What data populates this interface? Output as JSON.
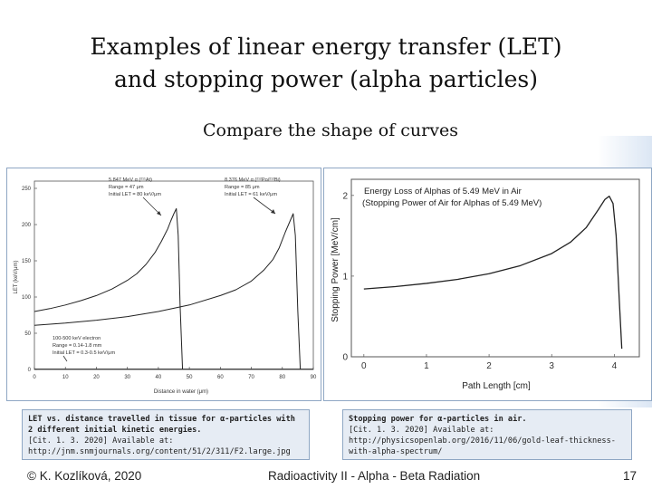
{
  "slide": {
    "title_line1": "Examples of linear energy transfer (LET)",
    "title_line2": "and stopping power (alpha particles)",
    "subtitle": "Compare the shape of curves",
    "footer_left": "© K. Kozlíková, 2020",
    "footer_center": "Radioactivity II - Alpha - Beta Radiation",
    "page_number": "17",
    "accent_color": "#8fa7c4",
    "caption_bg": "#e6ecf4"
  },
  "caption_left": {
    "line1": "LET vs. distance travelled in tissue for α-particles with",
    "line2": "2 different initial kinetic energies.",
    "line3": "[Cit. 1. 3. 2020] Available at:",
    "line4": "http://jnm.snmjournals.org/content/51/2/311/F2.large.jpg"
  },
  "caption_right": {
    "line1": "Stopping power for α-particles in air.",
    "line2": "[Cit. 1. 3. 2020] Available at:",
    "line3": "http://physicsopenlab.org/2016/11/06/gold-leaf-thickness-",
    "line4": "with-alpha-spectrum/"
  },
  "chart_data": [
    {
      "type": "line",
      "title": "",
      "xlabel": "Distance in water (μm)",
      "ylabel": "LET (keV/μm)",
      "xlim": [
        0,
        90
      ],
      "ylim": [
        0,
        260
      ],
      "x_ticks": [
        "0",
        "10",
        "20",
        "30",
        "40",
        "50",
        "60",
        "70",
        "80",
        "90"
      ],
      "y_ticks": [
        "0",
        "50",
        "100",
        "150",
        "200",
        "250"
      ],
      "grid": false,
      "annotations": [
        {
          "lines": [
            "5.847 MeV α (²¹¹At)",
            "Range = 47 μm",
            "Initial LET = 80 keV/μm"
          ]
        },
        {
          "lines": [
            "8.376 MeV α (²¹²Po/²¹²Bi)",
            "Range = 85 μm",
            "Initial LET = 61 keV/μm"
          ]
        },
        {
          "lines": [
            "100-500 keV electron",
            "Range = 0.14-1.8 mm",
            "Initial LET = 0.3-0.5 keV/μm"
          ]
        }
      ],
      "series": [
        {
          "color": "#222222",
          "x": [
            0,
            5,
            10,
            15,
            20,
            25,
            30,
            33,
            36,
            39,
            41,
            43,
            44,
            45,
            45.8,
            46.4,
            47,
            47.8
          ],
          "y": [
            80,
            84,
            89,
            95,
            102,
            111,
            123,
            132,
            145,
            162,
            177,
            194,
            205,
            215,
            222,
            185,
            90,
            0
          ]
        },
        {
          "color": "#222222",
          "x": [
            0,
            10,
            20,
            30,
            40,
            50,
            60,
            65,
            70,
            74,
            77,
            79,
            81,
            82.5,
            83.5,
            84.2,
            85,
            85.8
          ],
          "y": [
            61,
            64,
            68,
            73,
            80,
            89,
            102,
            110,
            122,
            137,
            152,
            168,
            190,
            205,
            215,
            185,
            80,
            0
          ]
        },
        {
          "color": "#222222",
          "x": [
            0,
            90
          ],
          "y": [
            0.4,
            0.4
          ]
        }
      ]
    },
    {
      "type": "line",
      "title": "Energy Loss of Alphas of 5.49 MeV in Air",
      "subtitle": "(Stopping Power of Air for Alphas of 5.49 MeV)",
      "xlabel": "Path Length [cm]",
      "ylabel": "Stopping Power [MeV/cm]",
      "xlim": [
        -0.2,
        4.4
      ],
      "ylim": [
        0,
        2.2
      ],
      "x_ticks": [
        "0",
        "1",
        "2",
        "3",
        "4"
      ],
      "y_ticks": [
        "0",
        "1",
        "2"
      ],
      "grid": false,
      "series": [
        {
          "color": "#222222",
          "x": [
            0,
            0.5,
            1.0,
            1.5,
            2.0,
            2.5,
            3.0,
            3.3,
            3.55,
            3.75,
            3.85,
            3.92,
            3.98,
            4.03,
            4.08,
            4.12
          ],
          "y": [
            0.84,
            0.87,
            0.91,
            0.96,
            1.03,
            1.13,
            1.28,
            1.42,
            1.6,
            1.83,
            1.95,
            1.99,
            1.9,
            1.5,
            0.7,
            0.1
          ]
        }
      ]
    }
  ]
}
